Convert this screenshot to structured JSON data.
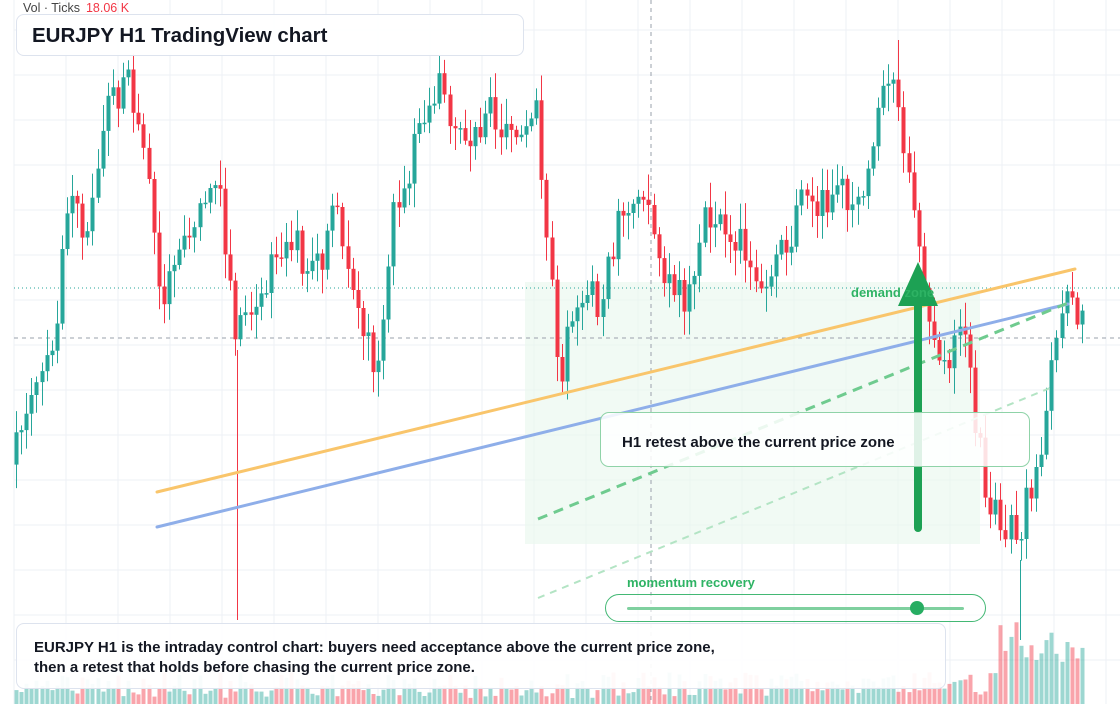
{
  "header": {
    "volume_label": "Vol · Ticks",
    "volume_value": "18.06 K"
  },
  "title": {
    "text": "EURJPY H1 TradingView chart"
  },
  "annotations": {
    "demand_zone": "demand zone",
    "retest_callout": "H1 retest above the current price zone",
    "momentum_label": "momentum recovery",
    "momentum_level": 0.86
  },
  "summary": {
    "text": "EURJPY H1 is the intraday control chart: buyers need acceptance above the current price zone, then a retest that holds before chasing the current price zone."
  },
  "colors": {
    "bull": "#26a69a",
    "bear": "#f23645",
    "accent_green": "#2eb364",
    "orange_trendline": "#f9c56b",
    "blue_trendline": "#8eaee9"
  }
}
